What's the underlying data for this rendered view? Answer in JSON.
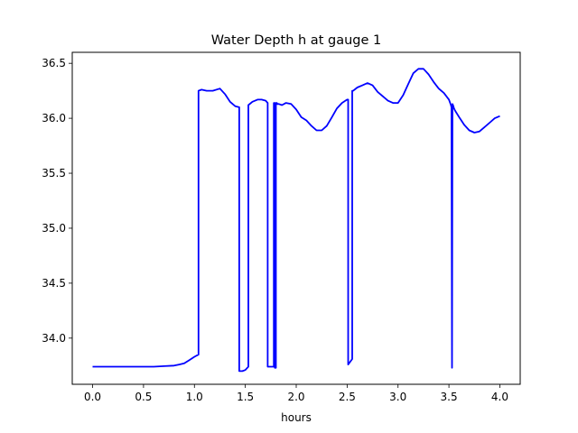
{
  "chart_data": {
    "type": "line",
    "title": "Water Depth h at gauge 1",
    "xlabel": "hours",
    "ylabel": "",
    "xlim": [
      -0.2,
      4.2
    ],
    "ylim": [
      33.58,
      36.6
    ],
    "xticks": [
      0.0,
      0.5,
      1.0,
      1.5,
      2.0,
      2.5,
      3.0,
      3.5,
      4.0
    ],
    "xtick_labels": [
      "0.0",
      "0.5",
      "1.0",
      "1.5",
      "2.0",
      "2.5",
      "3.0",
      "3.5",
      "4.0"
    ],
    "yticks": [
      34.0,
      34.5,
      35.0,
      35.5,
      36.0,
      36.5
    ],
    "ytick_labels": [
      "34.0",
      "34.5",
      "35.0",
      "35.5",
      "36.0",
      "36.5"
    ],
    "grid": false,
    "series": [
      {
        "color": "#0000ff",
        "x": [
          0.0,
          0.3,
          0.6,
          0.7,
          0.8,
          0.85,
          0.9,
          0.95,
          1.0,
          1.04,
          1.04,
          1.07,
          1.12,
          1.18,
          1.25,
          1.3,
          1.35,
          1.4,
          1.44,
          1.44,
          1.47,
          1.5,
          1.53,
          1.53,
          1.57,
          1.62,
          1.66,
          1.7,
          1.72,
          1.72,
          1.77,
          1.78,
          1.78,
          1.79,
          1.79,
          1.8,
          1.8,
          1.81,
          1.81,
          1.83,
          1.86,
          1.9,
          1.95,
          2.0,
          2.05,
          2.1,
          2.15,
          2.2,
          2.25,
          2.3,
          2.35,
          2.4,
          2.45,
          2.5,
          2.51,
          2.51,
          2.55,
          2.55,
          2.56,
          2.56,
          2.6,
          2.65,
          2.7,
          2.75,
          2.8,
          2.85,
          2.9,
          2.95,
          3.0,
          3.05,
          3.1,
          3.15,
          3.2,
          3.25,
          3.3,
          3.35,
          3.4,
          3.45,
          3.5,
          3.52,
          3.525,
          3.53,
          3.535,
          3.54,
          3.55,
          3.56,
          3.6,
          3.65,
          3.7,
          3.75,
          3.8,
          3.85,
          3.9,
          3.95,
          4.0
        ],
        "y": [
          33.74,
          33.74,
          33.74,
          33.745,
          33.75,
          33.76,
          33.77,
          33.8,
          33.83,
          33.85,
          36.25,
          36.26,
          36.25,
          36.25,
          36.27,
          36.22,
          36.15,
          36.11,
          36.1,
          33.7,
          33.7,
          33.71,
          33.74,
          36.12,
          36.15,
          36.17,
          36.17,
          36.16,
          36.14,
          33.74,
          33.74,
          33.74,
          36.14,
          36.14,
          33.73,
          33.73,
          36.14,
          36.14,
          36.13,
          36.13,
          36.12,
          36.14,
          36.13,
          36.08,
          36.01,
          35.98,
          35.93,
          35.89,
          35.89,
          35.93,
          36.01,
          36.09,
          36.14,
          36.17,
          36.17,
          33.76,
          33.81,
          36.25,
          36.25,
          36.25,
          36.28,
          36.3,
          36.32,
          36.3,
          36.24,
          36.2,
          36.16,
          36.14,
          36.14,
          36.21,
          36.31,
          36.41,
          36.45,
          36.45,
          36.4,
          36.33,
          36.27,
          36.23,
          36.17,
          36.12,
          36.1,
          33.73,
          36.13,
          36.12,
          36.09,
          36.07,
          36.01,
          35.94,
          35.89,
          35.87,
          35.88,
          35.92,
          35.96,
          36.0,
          36.02
        ]
      }
    ]
  }
}
